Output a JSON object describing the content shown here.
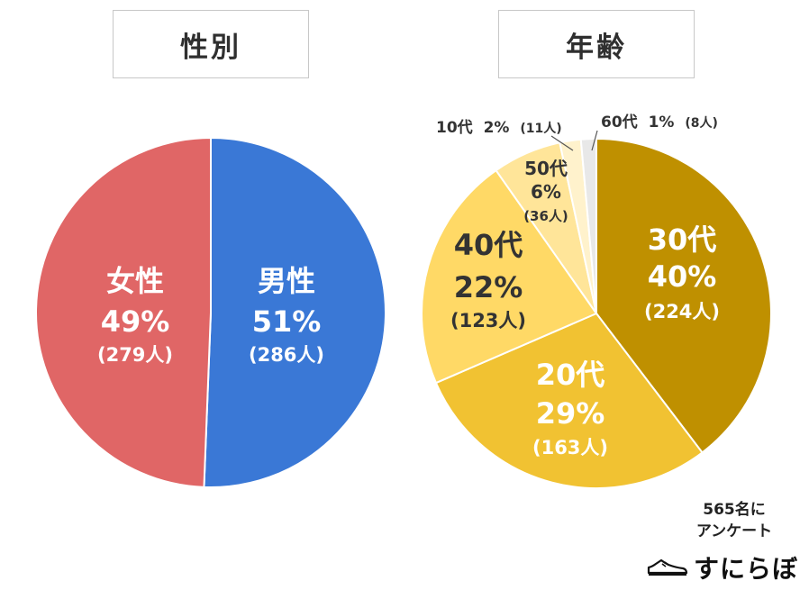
{
  "chart_data": [
    {
      "type": "pie",
      "title": "性別",
      "slices": [
        {
          "label": "男性",
          "percent": "51%",
          "count": "(286人)",
          "value": 286,
          "color": "#3a78d6"
        },
        {
          "label": "女性",
          "percent": "49%",
          "count": "(279人)",
          "value": 279,
          "color": "#e06666"
        }
      ]
    },
    {
      "type": "pie",
      "title": "年齢",
      "slices": [
        {
          "label": "30代",
          "percent": "40%",
          "count": "(224人)",
          "value": 224,
          "color": "#bf9000"
        },
        {
          "label": "20代",
          "percent": "29%",
          "count": "(163人)",
          "value": 163,
          "color": "#f1c232"
        },
        {
          "label": "40代",
          "percent": "22%",
          "count": "(123人)",
          "value": 123,
          "color": "#ffd966"
        },
        {
          "label": "50代",
          "percent": "6%",
          "count": "(36人)",
          "value": 36,
          "color": "#ffe599"
        },
        {
          "label": "10代",
          "percent": "2%",
          "count": "(11人)",
          "value": 11,
          "color": "#fff2cc"
        },
        {
          "label": "60代",
          "percent": "1%",
          "count": "(8人)",
          "value": 8,
          "color": "#e8e8e8"
        }
      ]
    }
  ],
  "note": {
    "line1": "565名に",
    "line2": "アンケート"
  },
  "brand": {
    "name": "すにらぼ",
    "icon": "sneaker-icon"
  }
}
